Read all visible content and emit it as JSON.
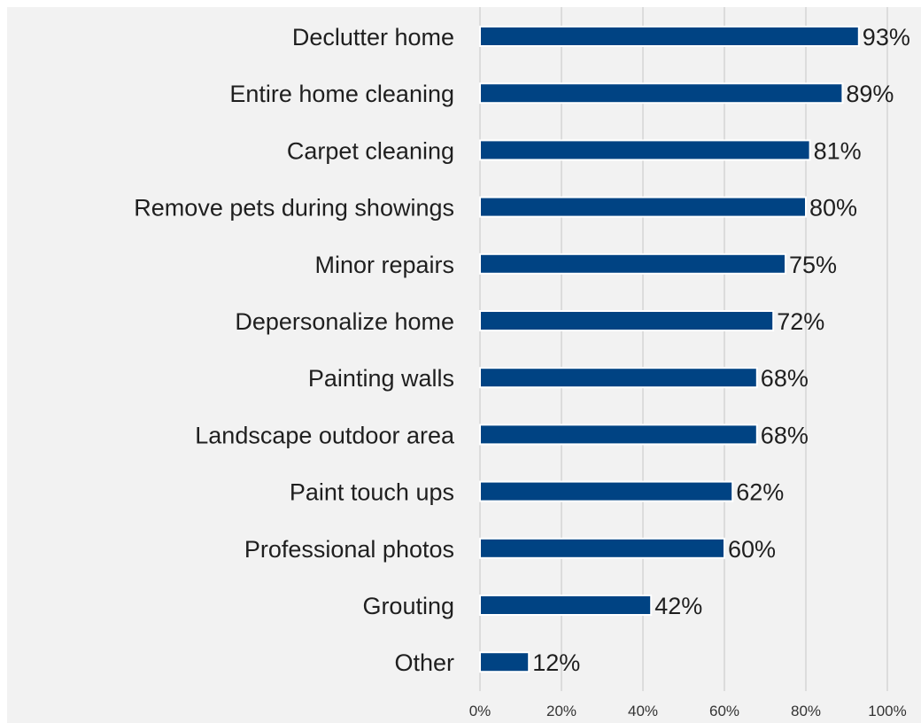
{
  "chart_data": {
    "type": "bar",
    "orientation": "horizontal",
    "categories": [
      "Declutter home",
      "Entire home cleaning",
      "Carpet cleaning",
      "Remove pets during showings",
      "Minor repairs",
      "Depersonalize home",
      "Painting walls",
      "Landscape outdoor area",
      "Paint touch ups",
      "Professional photos",
      "Grouting",
      "Other"
    ],
    "values": [
      93,
      89,
      81,
      80,
      75,
      72,
      68,
      68,
      62,
      60,
      42,
      12
    ],
    "value_labels": [
      "93%",
      "89%",
      "81%",
      "80%",
      "75%",
      "72%",
      "68%",
      "68%",
      "62%",
      "60%",
      "42%",
      "12%"
    ],
    "xlim": [
      0,
      100
    ],
    "x_ticks": [
      0,
      20,
      40,
      60,
      80,
      100
    ],
    "x_tick_labels": [
      "0%",
      "20%",
      "40%",
      "60%",
      "80%",
      "100%"
    ],
    "title": "",
    "xlabel": "",
    "ylabel": "",
    "grid": "vertical",
    "legend": "none",
    "colors": {
      "bar": "#004383",
      "bar_outline": "#ffffff",
      "background": "#f2f2f2",
      "grid": "#d4d4d4",
      "text": "#1f1f1f"
    }
  }
}
